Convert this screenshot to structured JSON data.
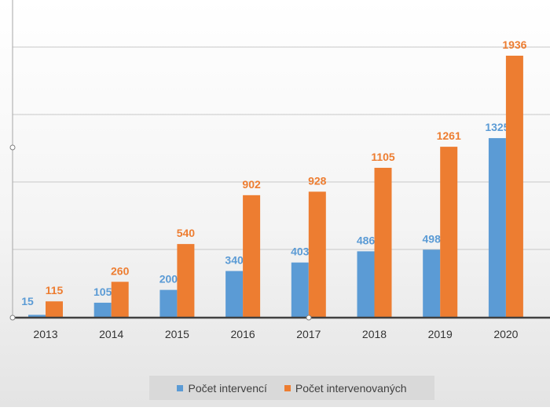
{
  "colors": {
    "series1": "#5b9bd5",
    "series2": "#ed7d31",
    "grid": "#c8c8c8",
    "axis": "#404040",
    "tick_text": "#333333"
  },
  "chart_data": {
    "type": "bar",
    "categories": [
      "2013",
      "2014",
      "2015",
      "2016",
      "2017",
      "2018",
      "2019",
      "2020"
    ],
    "series": [
      {
        "name": "Počet intervencí",
        "values": [
          15,
          105,
          200,
          340,
          403,
          486,
          498,
          1325
        ]
      },
      {
        "name": "Počet intervenovaných",
        "values": [
          115,
          260,
          540,
          902,
          928,
          1105,
          1261,
          1936
        ]
      }
    ],
    "title": "",
    "xlabel": "",
    "ylabel": "",
    "ylim": [
      0,
      2000
    ],
    "grid": true,
    "legend_position": "bottom"
  }
}
